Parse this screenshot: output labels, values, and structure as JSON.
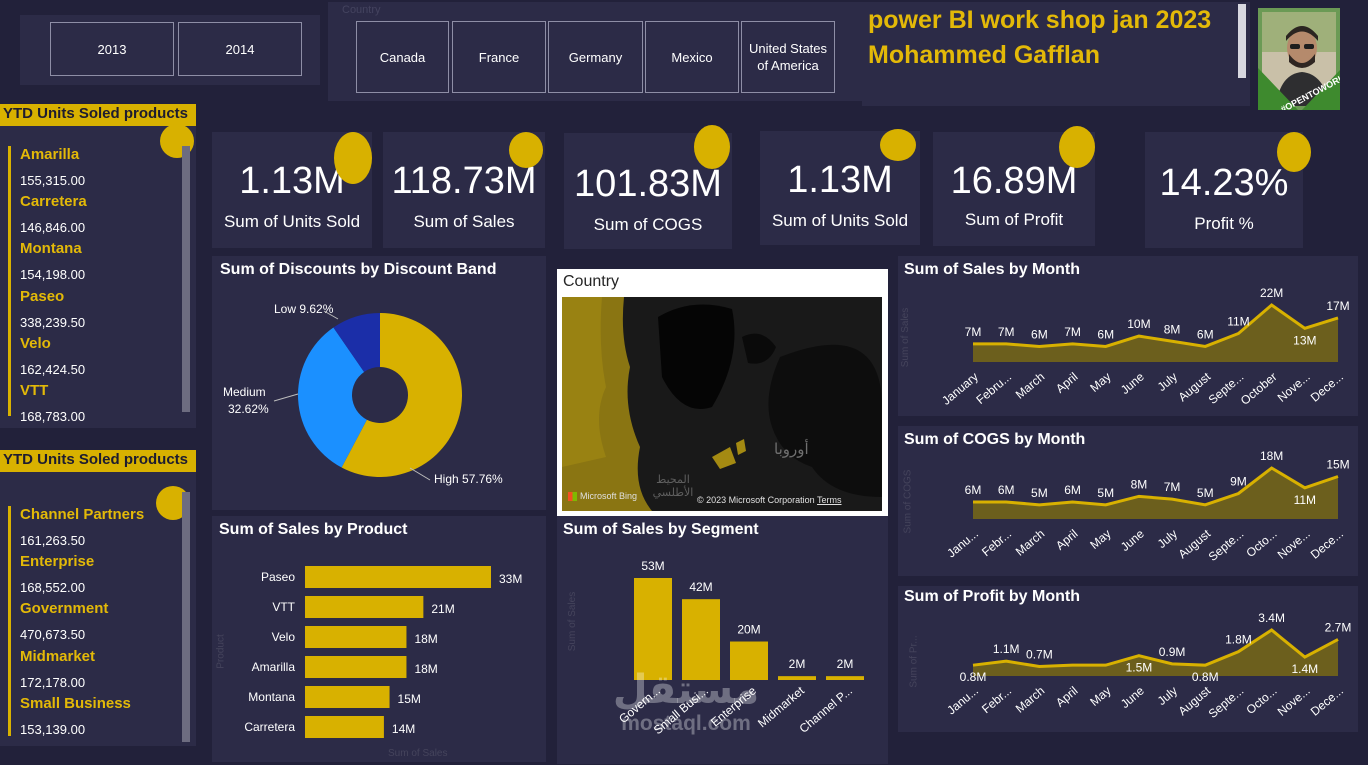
{
  "year_slicer": {
    "options": [
      "2013",
      "2014"
    ]
  },
  "country_slicer": {
    "title": "Country",
    "options": [
      "Canada",
      "France",
      "Germany",
      "Mexico",
      "United States of America"
    ]
  },
  "header": {
    "line1": "power BI work shop jan 2023",
    "line2": "Mohammed Gafflan",
    "photo_badge": "#OPENTOWORK"
  },
  "products_list": {
    "title": "YTD Units Soled products",
    "items": [
      {
        "name": "Amarilla",
        "value": "155,315.00"
      },
      {
        "name": "Carretera",
        "value": "146,846.00"
      },
      {
        "name": "Montana",
        "value": "154,198.00"
      },
      {
        "name": "Paseo",
        "value": "338,239.50"
      },
      {
        "name": "Velo",
        "value": "162,424.50"
      },
      {
        "name": "VTT",
        "value": "168,783.00"
      }
    ]
  },
  "segments_list": {
    "title": "YTD Units Soled products",
    "items": [
      {
        "name": "Channel Partners",
        "value": "161,263.50"
      },
      {
        "name": "Enterprise",
        "value": "168,552.00"
      },
      {
        "name": "Government",
        "value": "470,673.50"
      },
      {
        "name": "Midmarket",
        "value": "172,178.00"
      },
      {
        "name": "Small Business",
        "value": "153,139.00"
      }
    ]
  },
  "kpis": [
    {
      "value": "1.13M",
      "label": "Sum of Units Sold"
    },
    {
      "value": "118.73M",
      "label": "Sum of  Sales"
    },
    {
      "value": "101.83M",
      "label": "Sum of COGS"
    },
    {
      "value": "1.13M",
      "label": "Sum of Units Sold"
    },
    {
      "value": "16.89M",
      "label": "Sum of Profit"
    },
    {
      "value": "14.23%",
      "label": "Profit %"
    }
  ],
  "map": {
    "title": "Country",
    "labels": [
      "أوروبا",
      "المحيط الأطلسي"
    ],
    "attribution": "Microsoft Bing",
    "copyright": "© 2023 Microsoft Corporation",
    "terms": "Terms"
  },
  "watermark": {
    "arabic": "مستقل",
    "latin": "mostaql.com"
  },
  "colors": {
    "background": "#22213a",
    "panel": "#2c2b47",
    "accent": "#d8b100",
    "blue": "#1b90ff",
    "navy": "#1b2ea8"
  },
  "chart_data": [
    {
      "id": "discounts",
      "type": "pie",
      "title": "Sum of Discounts by Discount Band",
      "slices": [
        {
          "name": "High",
          "value": 57.76,
          "label": "High 57.76%"
        },
        {
          "name": "Medium",
          "value": 32.62,
          "label_a": "Medium",
          "label_b": "32.62%"
        },
        {
          "name": "Low",
          "value": 9.62,
          "label": "Low 9.62%"
        }
      ]
    },
    {
      "id": "sales_by_product",
      "type": "bar",
      "title": "Sum of Sales by Product",
      "xlabel": "Sum of Sales",
      "ylabel": "Product",
      "categories": [
        "Paseo",
        "VTT",
        "Velo",
        "Amarilla",
        "Montana",
        "Carretera"
      ],
      "values": [
        33,
        21,
        18,
        18,
        15,
        14
      ],
      "labels": [
        "33M",
        "21M",
        "18M",
        "18M",
        "15M",
        "14M"
      ]
    },
    {
      "id": "sales_by_segment",
      "type": "bar",
      "title": "Sum of Sales by Segment",
      "ylabel": "Sum of Sales",
      "categories": [
        "Govern...",
        "Small Busi...",
        "Enterprise",
        "Midmarket",
        "Channel P..."
      ],
      "values": [
        53,
        42,
        20,
        2,
        2
      ],
      "labels": [
        "53M",
        "42M",
        "20M",
        "2M",
        "2M"
      ]
    },
    {
      "id": "sales_by_month",
      "type": "area",
      "title": "Sum of Sales by Month",
      "ylabel": "Sum of Sales",
      "categories": [
        "January",
        "Febru...",
        "March",
        "April",
        "May",
        "June",
        "July",
        "August",
        "Septe...",
        "October",
        "Nove...",
        "Dece..."
      ],
      "values": [
        7,
        7,
        6,
        7,
        6,
        10,
        8,
        6,
        11,
        22,
        13,
        17
      ],
      "labels": [
        "7M",
        "7M",
        "6M",
        "7M",
        "6M",
        "10M",
        "8M",
        "6M",
        "11M",
        "22M",
        "13M",
        "17M"
      ]
    },
    {
      "id": "cogs_by_month",
      "type": "area",
      "title": "Sum of COGS by Month",
      "ylabel": "Sum of COGS",
      "categories": [
        "Janu...",
        "Febr...",
        "March",
        "April",
        "May",
        "June",
        "July",
        "August",
        "Septe...",
        "Octo...",
        "Nove...",
        "Dece..."
      ],
      "values": [
        6,
        6,
        5,
        6,
        5,
        8,
        7,
        5,
        9,
        18,
        11,
        15
      ],
      "labels": [
        "6M",
        "6M",
        "5M",
        "6M",
        "5M",
        "8M",
        "7M",
        "5M",
        "9M",
        "18M",
        "11M",
        "15M"
      ]
    },
    {
      "id": "profit_by_month",
      "type": "area",
      "title": "Sum of Profit by Month",
      "ylabel": "Sum of Pr...",
      "categories": [
        "Janu...",
        "Febr...",
        "March",
        "April",
        "May",
        "June",
        "July",
        "August",
        "Septe...",
        "Octo...",
        "Nove...",
        "Dece..."
      ],
      "values": [
        0.8,
        1.1,
        0.7,
        0.8,
        0.8,
        1.5,
        0.9,
        0.8,
        1.8,
        3.4,
        1.4,
        2.7
      ],
      "labels": [
        "0.8M",
        "1.1M",
        "0.7M",
        "",
        "",
        "1.5M",
        "0.9M",
        "0.8M",
        "1.8M",
        "3.4M",
        "1.4M",
        "2.7M"
      ]
    }
  ]
}
